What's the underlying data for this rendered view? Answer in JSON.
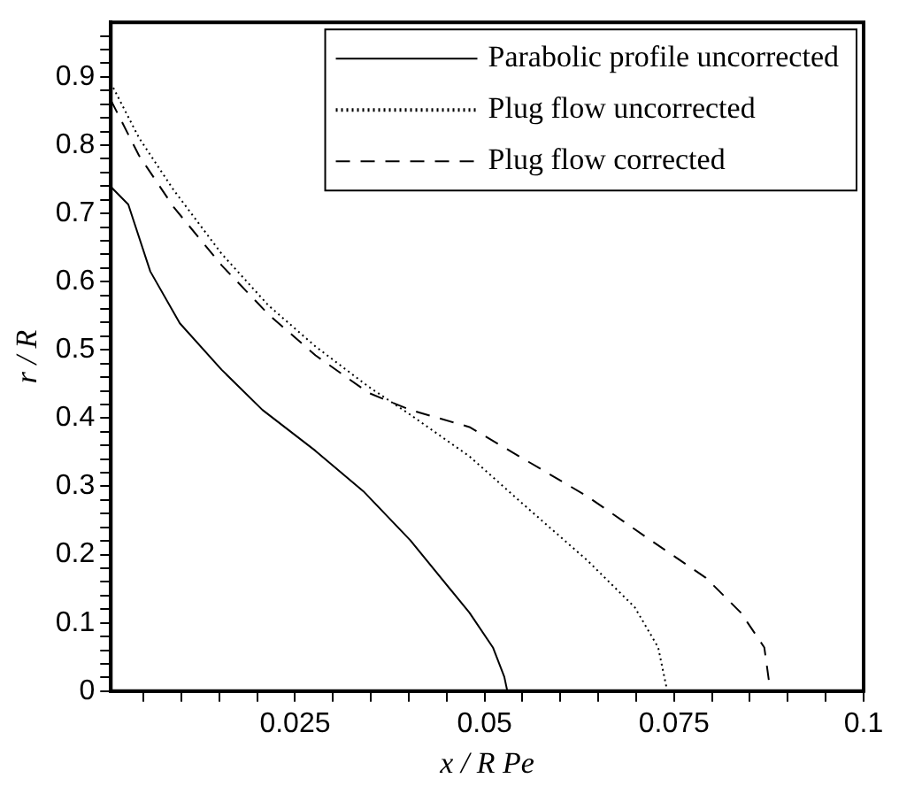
{
  "chart_data": {
    "type": "line",
    "xlabel": "x / R Pe",
    "ylabel": "r / R",
    "xlim": [
      0.0007,
      0.1
    ],
    "ylim": [
      0,
      0.98
    ],
    "xticks": [
      {
        "value": 0.005,
        "label": null
      },
      {
        "value": 0.01,
        "label": null
      },
      {
        "value": 0.015,
        "label": null
      },
      {
        "value": 0.02,
        "label": null
      },
      0.025,
      {
        "value": 0.03,
        "label": null
      },
      {
        "value": 0.035,
        "label": null
      },
      {
        "value": 0.04,
        "label": null
      },
      {
        "value": 0.045,
        "label": null
      },
      0.05,
      {
        "value": 0.055,
        "label": null
      },
      {
        "value": 0.06,
        "label": null
      },
      {
        "value": 0.065,
        "label": null
      },
      {
        "value": 0.07,
        "label": null
      },
      0.075,
      {
        "value": 0.08,
        "label": null
      },
      {
        "value": 0.085,
        "label": null
      },
      {
        "value": 0.09,
        "label": null
      },
      {
        "value": 0.095,
        "label": null
      },
      0.1
    ],
    "yticks": [
      0,
      {
        "value": 0.02,
        "label": null
      },
      {
        "value": 0.04,
        "label": null
      },
      {
        "value": 0.06,
        "label": null
      },
      {
        "value": 0.08,
        "label": null
      },
      0.1,
      {
        "value": 0.12,
        "label": null
      },
      {
        "value": 0.14,
        "label": null
      },
      {
        "value": 0.16,
        "label": null
      },
      {
        "value": 0.18,
        "label": null
      },
      0.2,
      {
        "value": 0.22,
        "label": null
      },
      {
        "value": 0.24,
        "label": null
      },
      {
        "value": 0.26,
        "label": null
      },
      {
        "value": 0.28,
        "label": null
      },
      0.3,
      {
        "value": 0.32,
        "label": null
      },
      {
        "value": 0.34,
        "label": null
      },
      {
        "value": 0.36,
        "label": null
      },
      {
        "value": 0.38,
        "label": null
      },
      0.4,
      {
        "value": 0.42,
        "label": null
      },
      {
        "value": 0.44,
        "label": null
      },
      {
        "value": 0.46,
        "label": null
      },
      {
        "value": 0.48,
        "label": null
      },
      0.5,
      {
        "value": 0.52,
        "label": null
      },
      {
        "value": 0.54,
        "label": null
      },
      {
        "value": 0.56,
        "label": null
      },
      {
        "value": 0.58,
        "label": null
      },
      0.6,
      {
        "value": 0.62,
        "label": null
      },
      {
        "value": 0.64,
        "label": null
      },
      {
        "value": 0.66,
        "label": null
      },
      {
        "value": 0.68,
        "label": null
      },
      0.7,
      {
        "value": 0.72,
        "label": null
      },
      {
        "value": 0.74,
        "label": null
      },
      {
        "value": 0.76,
        "label": null
      },
      {
        "value": 0.78,
        "label": null
      },
      0.8,
      {
        "value": 0.82,
        "label": null
      },
      {
        "value": 0.84,
        "label": null
      },
      {
        "value": 0.86,
        "label": null
      },
      {
        "value": 0.88,
        "label": null
      },
      0.9,
      {
        "value": 0.92,
        "label": null
      },
      {
        "value": 0.94,
        "label": null
      },
      {
        "value": 0.96,
        "label": null
      }
    ],
    "grid": false,
    "legend": "top right",
    "marker": "none",
    "series": [
      {
        "name": "Parabolic profile uncorrected",
        "color": "#000000",
        "line_style": "solid",
        "x": [
          0.0007,
          0.003,
          0.0059,
          0.0098,
          0.0153,
          0.0207,
          0.0277,
          0.034,
          0.0402,
          0.048,
          0.0511,
          0.0526,
          0.053
        ],
        "values": [
          0.739,
          0.713,
          0.615,
          0.539,
          0.471,
          0.412,
          0.352,
          0.293,
          0.221,
          0.115,
          0.064,
          0.021,
          0
        ]
      },
      {
        "name": "Plug flow uncorrected",
        "color": "#000000",
        "line_style": "dotted",
        "x": [
          0.0007,
          0.0044,
          0.009,
          0.0153,
          0.0215,
          0.0277,
          0.0347,
          0.0402,
          0.048,
          0.0558,
          0.0636,
          0.0698,
          0.0729,
          0.0741
        ],
        "values": [
          0.891,
          0.811,
          0.734,
          0.641,
          0.565,
          0.505,
          0.446,
          0.405,
          0.344,
          0.267,
          0.191,
          0.123,
          0.064,
          0
        ]
      },
      {
        "name": "Plug flow corrected",
        "color": "#000000",
        "line_style": "dashed",
        "x": [
          0.0007,
          0.0044,
          0.009,
          0.0153,
          0.0215,
          0.0277,
          0.0347,
          0.0402,
          0.048,
          0.0558,
          0.0636,
          0.0714,
          0.0792,
          0.0838,
          0.0869,
          0.0877
        ],
        "values": [
          0.866,
          0.785,
          0.709,
          0.624,
          0.552,
          0.492,
          0.437,
          0.412,
          0.387,
          0.336,
          0.285,
          0.225,
          0.166,
          0.115,
          0.064,
          0
        ]
      }
    ]
  }
}
